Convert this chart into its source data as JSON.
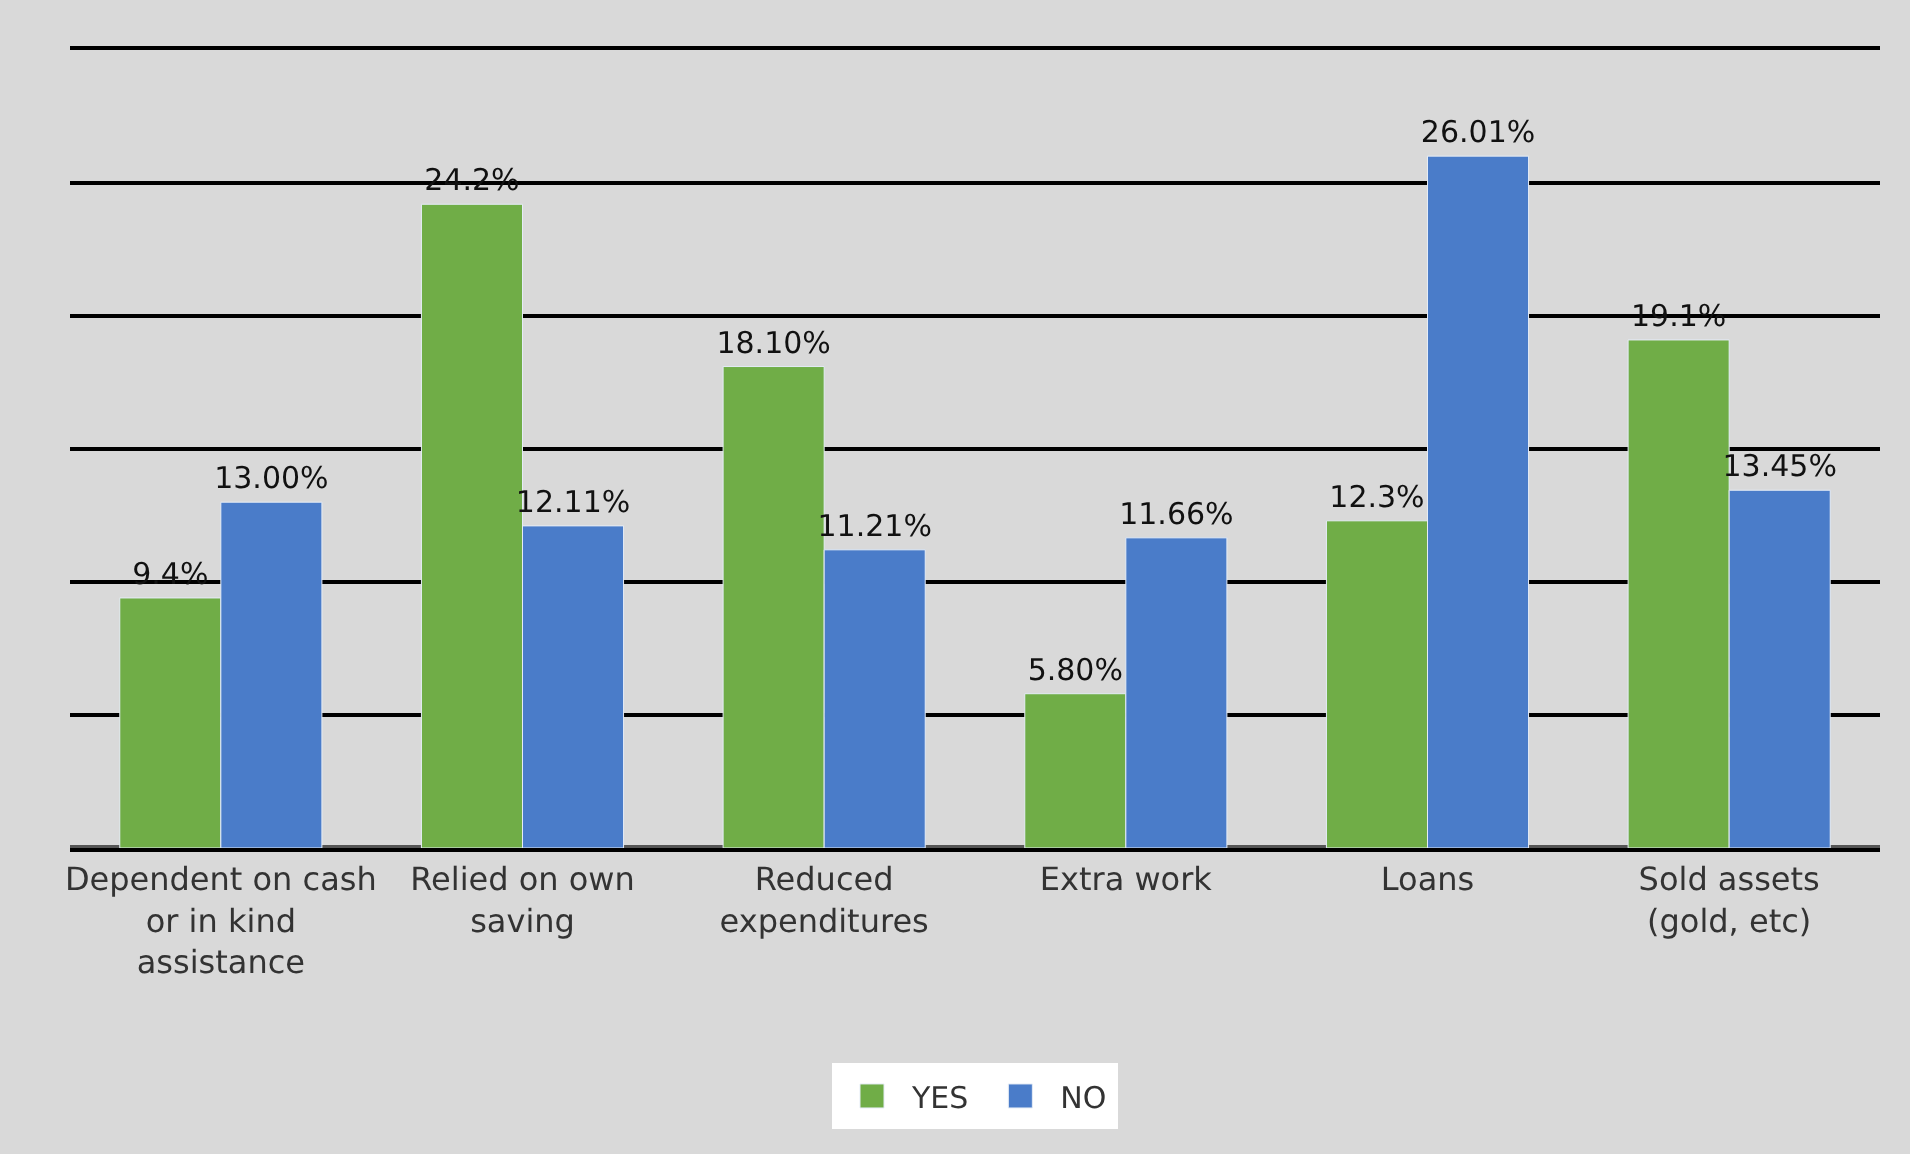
{
  "chart_data": {
    "type": "bar",
    "categories": [
      "Dependent on cash or in kind assistance",
      "Relied on own saving",
      "Reduced expenditures",
      "Extra work",
      "Loans",
      "Sold assets (gold, etc)"
    ],
    "series": [
      {
        "name": "YES",
        "color": "#70ad47",
        "values": [
          9.4,
          24.2,
          18.1,
          5.8,
          12.3,
          19.1
        ],
        "value_labels": [
          "9.4%",
          "24.2%",
          "18.10%",
          "5.80%",
          "12.3%",
          "19.1%"
        ]
      },
      {
        "name": "NO",
        "color": "#4a7cc9",
        "values": [
          13.0,
          12.11,
          11.21,
          11.66,
          26.01,
          13.45
        ],
        "value_labels": [
          "13.00%",
          "12.11%",
          "11.21%",
          "11.66%",
          "26.01%",
          "13.45%"
        ]
      }
    ],
    "ylim": [
      0,
      30
    ],
    "yticks": [
      {
        "value": 0,
        "label": null
      },
      {
        "value": 5,
        "label": null
      },
      {
        "value": 10,
        "label": null
      },
      {
        "value": 15,
        "label": null
      },
      {
        "value": 20,
        "label": null
      },
      {
        "value": 25,
        "label": null
      },
      {
        "value": 30,
        "label": null
      }
    ],
    "tick_labels": "x",
    "grid": "y",
    "legend": "bottom"
  }
}
